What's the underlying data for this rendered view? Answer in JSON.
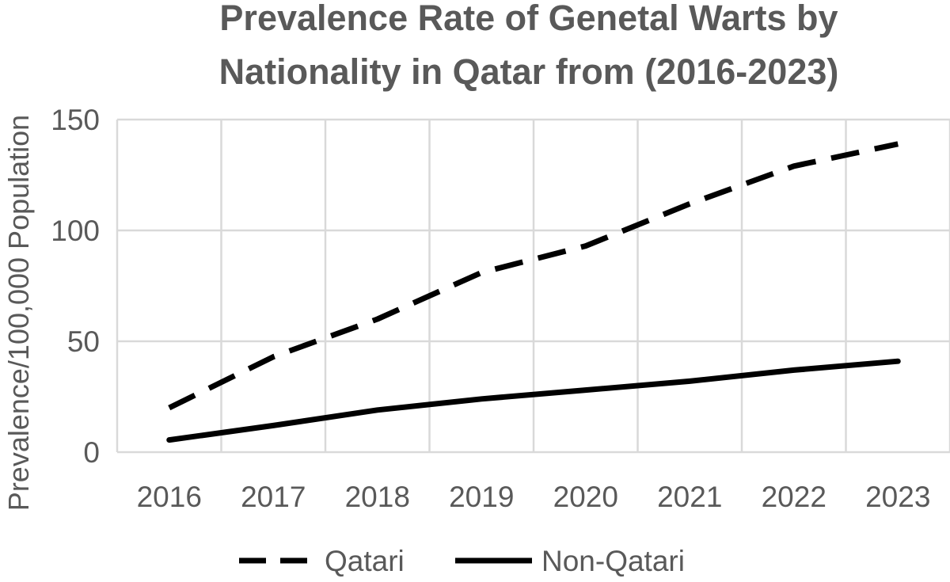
{
  "chart_data": {
    "type": "line",
    "title": [
      "Prevalence Rate of Genetal Warts by",
      "Nationality in Qatar from (2016-2023)"
    ],
    "xlabel": "",
    "ylabel": "Prevalence/100,000 Population",
    "categories": [
      "2016",
      "2017",
      "2018",
      "2019",
      "2020",
      "2021",
      "2022",
      "2023"
    ],
    "ylim": [
      0,
      150
    ],
    "yticks": [
      0,
      50,
      100,
      150
    ],
    "grid": true,
    "legend_position": "bottom",
    "series": [
      {
        "name": "Qatari",
        "style": "dashed",
        "color": "#000000",
        "values": [
          20,
          43,
          60,
          81,
          93,
          112,
          129,
          139
        ]
      },
      {
        "name": "Non-Qatari",
        "style": "solid",
        "color": "#000000",
        "values": [
          5.5,
          12,
          19,
          24,
          28,
          32,
          37,
          41
        ]
      }
    ]
  }
}
